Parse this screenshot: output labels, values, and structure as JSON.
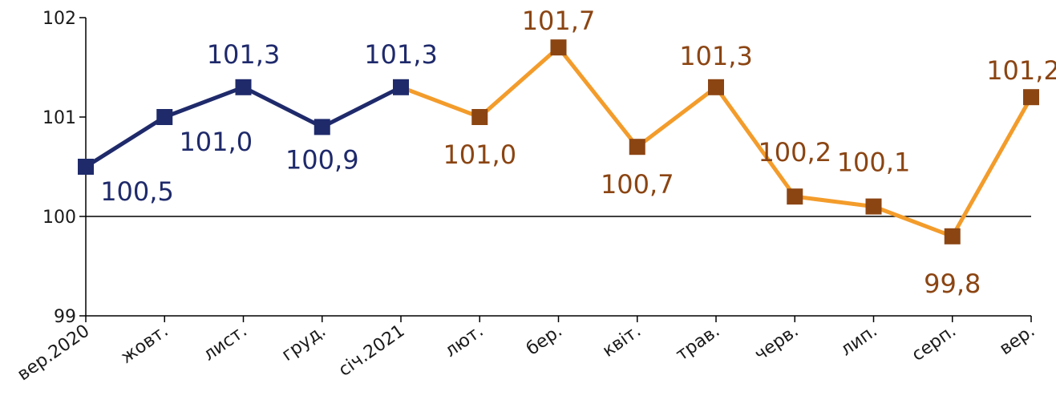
{
  "chart_data": {
    "type": "line",
    "title": "",
    "xlabel": "",
    "ylabel": "",
    "ylim": [
      99,
      102
    ],
    "yticks": [
      99,
      100,
      101,
      102
    ],
    "reference_line": 100,
    "grid": false,
    "categories": [
      "вер.2020",
      "жовт.",
      "лист.",
      "груд.",
      "січ.2021",
      "лют.",
      "бер.",
      "квіт.",
      "трав.",
      "черв.",
      "лип.",
      "серп.",
      "вер."
    ],
    "values": [
      100.5,
      101.0,
      101.3,
      100.9,
      101.3,
      101.0,
      101.7,
      100.7,
      101.3,
      100.2,
      100.1,
      99.8,
      101.2
    ],
    "value_labels": [
      "100,5",
      "101,0",
      "101,3",
      "100,9",
      "101,3",
      "101,0",
      "101,7",
      "100,7",
      "101,3",
      "100,2",
      "100,1",
      "99,8",
      "101,2"
    ],
    "segments": [
      {
        "start": 0,
        "end": 4,
        "line_color": "#1f2a6b",
        "marker_color": "#1f2a6b",
        "label_color": "#1f2a6b"
      },
      {
        "start": 4,
        "end": 12,
        "line_color": "#f39c2b",
        "marker_color": "#8b4513",
        "label_color": "#8b4513"
      }
    ]
  }
}
